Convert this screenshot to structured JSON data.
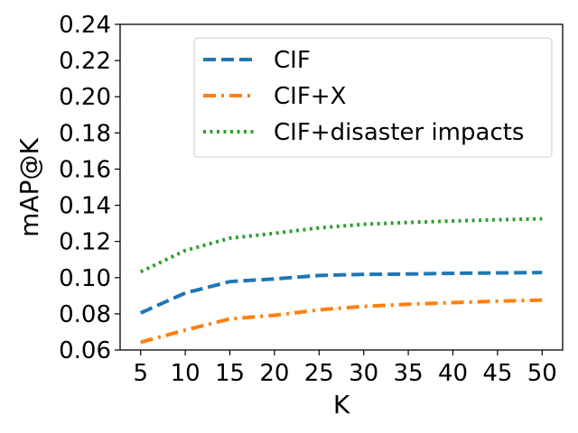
{
  "chart_data": {
    "type": "line",
    "title": "",
    "xlabel": "K",
    "ylabel": "mAP@K",
    "x": [
      5,
      10,
      15,
      20,
      25,
      30,
      35,
      40,
      45,
      50
    ],
    "x_tick_labels": [
      "5",
      "10",
      "15",
      "20",
      "25",
      "30",
      "35",
      "40",
      "45",
      "50"
    ],
    "ylim": [
      0.06,
      0.24
    ],
    "y_ticks": [
      0.06,
      0.08,
      0.1,
      0.12,
      0.14,
      0.16,
      0.18,
      0.2,
      0.22,
      0.24
    ],
    "y_tick_labels": [
      "0.06",
      "0.08",
      "0.10",
      "0.12",
      "0.14",
      "0.16",
      "0.18",
      "0.20",
      "0.22",
      "0.24"
    ],
    "grid": false,
    "legend_position": "top-right",
    "series": [
      {
        "name": "CIF",
        "color": "#1f77b4",
        "style": "dashed",
        "values": [
          0.0805,
          0.0915,
          0.0978,
          0.0993,
          0.1012,
          0.1018,
          0.102,
          0.1024,
          0.1026,
          0.1028
        ]
      },
      {
        "name": "CIF+X",
        "color": "#ff7f0e",
        "style": "dashdot",
        "values": [
          0.0643,
          0.071,
          0.0772,
          0.0792,
          0.0822,
          0.0841,
          0.0853,
          0.0862,
          0.087,
          0.0876
        ]
      },
      {
        "name": "CIF+disaster impacts",
        "color": "#2ca02c",
        "style": "dotted",
        "values": [
          0.1032,
          0.115,
          0.1218,
          0.1245,
          0.1275,
          0.1295,
          0.1305,
          0.1313,
          0.132,
          0.1325
        ]
      }
    ]
  }
}
